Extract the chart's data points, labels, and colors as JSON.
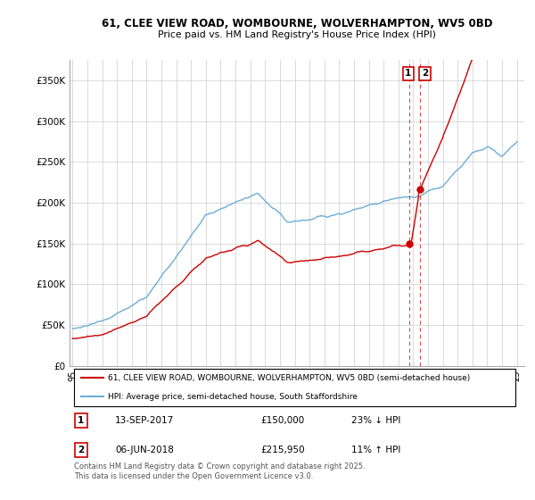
{
  "title1": "61, CLEE VIEW ROAD, WOMBOURNE, WOLVERHAMPTON, WV5 0BD",
  "title2": "Price paid vs. HM Land Registry's House Price Index (HPI)",
  "legend_line1": "61, CLEE VIEW ROAD, WOMBOURNE, WOLVERHAMPTON, WV5 0BD (semi-detached house)",
  "legend_line2": "HPI: Average price, semi-detached house, South Staffordshire",
  "annotation1_label": "1",
  "annotation1_date": "13-SEP-2017",
  "annotation1_price": "£150,000",
  "annotation1_hpi": "23% ↓ HPI",
  "annotation2_label": "2",
  "annotation2_date": "06-JUN-2018",
  "annotation2_price": "£215,950",
  "annotation2_hpi": "11% ↑ HPI",
  "footnote": "Contains HM Land Registry data © Crown copyright and database right 2025.\nThis data is licensed under the Open Government Licence v3.0.",
  "hpi_color": "#6baed6",
  "price_color": "#cc0000",
  "annotation_color": "#cc0000",
  "ylim": [
    0,
    375000
  ],
  "yticks": [
    0,
    50000,
    100000,
    150000,
    200000,
    250000,
    300000,
    350000
  ],
  "ytick_labels": [
    "£0",
    "£50K",
    "£100K",
    "£150K",
    "£200K",
    "£250K",
    "£300K",
    "£350K"
  ],
  "sale1_year": 2017.71,
  "sale1_price": 150000,
  "sale2_year": 2018.43,
  "sale2_price": 215950,
  "background_color": "#ffffff",
  "grid_color": "#cccccc"
}
